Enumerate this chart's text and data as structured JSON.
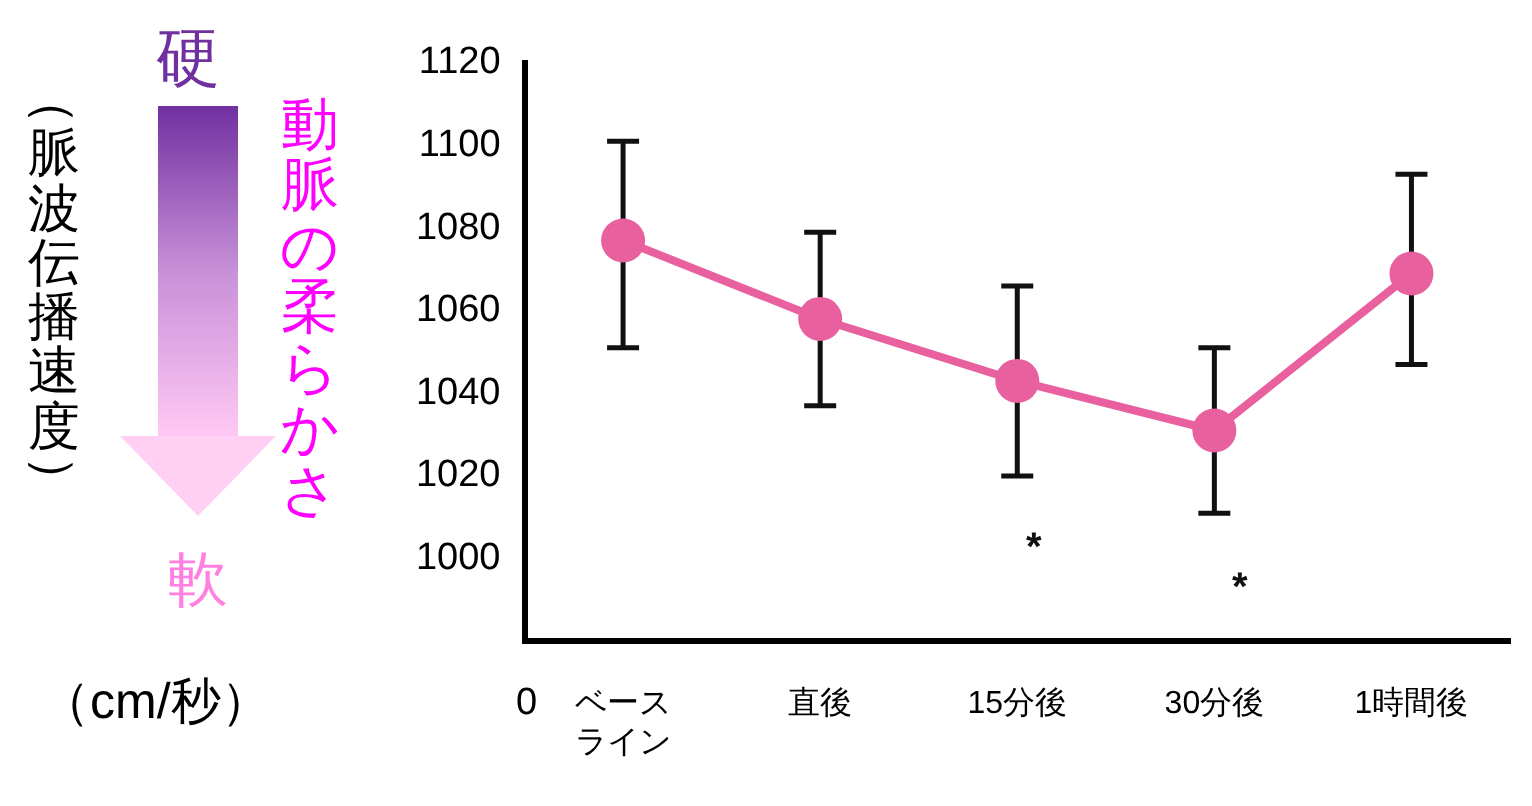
{
  "chart_data": {
    "type": "line",
    "categories": [
      "ベースライン",
      "直後",
      "15分後",
      "30分後",
      "1時間後"
    ],
    "series": [
      {
        "color": "#e8609e",
        "values": [
          1077,
          1058,
          1043,
          1031,
          1069
        ],
        "errors": [
          [
            1051,
            1101
          ],
          [
            1037,
            1079
          ],
          [
            1020,
            1066
          ],
          [
            1011,
            1051
          ],
          [
            1047,
            1093
          ]
        ]
      }
    ],
    "ylim": [
      980,
      1120
    ],
    "yticks": [
      1000,
      1020,
      1040,
      1060,
      1080,
      1100,
      1120
    ],
    "marker": "circle",
    "line_style": "solid",
    "grid": false,
    "legend": false,
    "annotations": [
      "硬",
      "軟",
      "動脈の柔らかさ",
      "（cm/秒）",
      "*",
      "*",
      "0",
      "（脈波伝播速度）"
    ]
  }
}
